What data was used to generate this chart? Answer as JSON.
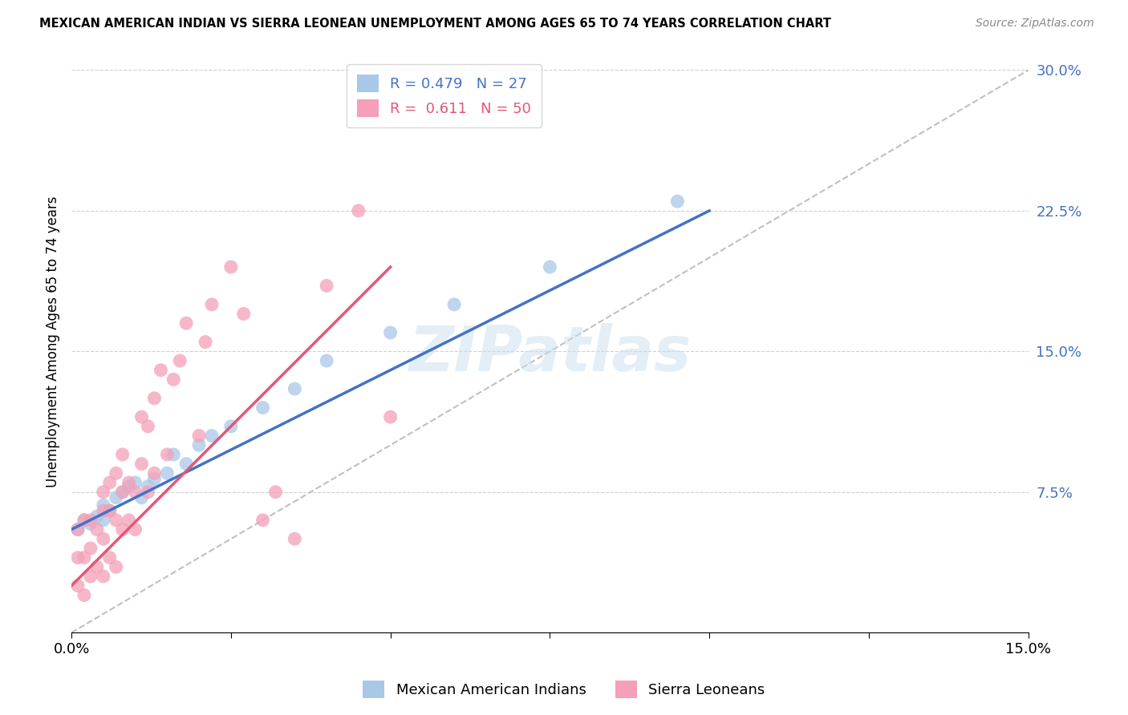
{
  "title": "MEXICAN AMERICAN INDIAN VS SIERRA LEONEAN UNEMPLOYMENT AMONG AGES 65 TO 74 YEARS CORRELATION CHART",
  "source": "Source: ZipAtlas.com",
  "ylabel": "Unemployment Among Ages 65 to 74 years",
  "xlim": [
    0.0,
    0.15
  ],
  "ylim": [
    0.0,
    0.31
  ],
  "yticks": [
    0.075,
    0.15,
    0.225,
    0.3
  ],
  "ytick_labels": [
    "7.5%",
    "15.0%",
    "22.5%",
    "30.0%"
  ],
  "xticks": [
    0.0,
    0.025,
    0.05,
    0.075,
    0.1,
    0.125,
    0.15
  ],
  "xtick_labels": [
    "0.0%",
    "",
    "",
    "",
    "",
    "",
    "15.0%"
  ],
  "blue_color": "#a8c8e8",
  "pink_color": "#f4a0b8",
  "blue_line_color": "#4472c4",
  "pink_line_color": "#e05878",
  "diag_line_color": "#c0c0c0",
  "R_blue": 0.479,
  "N_blue": 27,
  "R_pink": 0.611,
  "N_pink": 50,
  "watermark": "ZIPatlas",
  "blue_scatter_x": [
    0.001,
    0.002,
    0.003,
    0.004,
    0.005,
    0.005,
    0.006,
    0.007,
    0.008,
    0.009,
    0.01,
    0.011,
    0.012,
    0.013,
    0.015,
    0.016,
    0.018,
    0.02,
    0.022,
    0.025,
    0.03,
    0.035,
    0.04,
    0.05,
    0.06,
    0.075,
    0.095
  ],
  "blue_scatter_y": [
    0.055,
    0.06,
    0.058,
    0.062,
    0.06,
    0.068,
    0.065,
    0.072,
    0.075,
    0.078,
    0.08,
    0.072,
    0.078,
    0.082,
    0.085,
    0.095,
    0.09,
    0.1,
    0.105,
    0.11,
    0.12,
    0.13,
    0.145,
    0.16,
    0.175,
    0.195,
    0.23
  ],
  "pink_scatter_x": [
    0.001,
    0.001,
    0.001,
    0.002,
    0.002,
    0.002,
    0.003,
    0.003,
    0.003,
    0.004,
    0.004,
    0.005,
    0.005,
    0.005,
    0.005,
    0.006,
    0.006,
    0.006,
    0.007,
    0.007,
    0.007,
    0.008,
    0.008,
    0.008,
    0.009,
    0.009,
    0.01,
    0.01,
    0.011,
    0.011,
    0.012,
    0.012,
    0.013,
    0.013,
    0.014,
    0.015,
    0.016,
    0.017,
    0.018,
    0.02,
    0.021,
    0.022,
    0.025,
    0.027,
    0.03,
    0.032,
    0.035,
    0.04,
    0.045,
    0.05
  ],
  "pink_scatter_y": [
    0.025,
    0.04,
    0.055,
    0.02,
    0.04,
    0.06,
    0.03,
    0.045,
    0.06,
    0.035,
    0.055,
    0.03,
    0.05,
    0.065,
    0.075,
    0.04,
    0.065,
    0.08,
    0.035,
    0.06,
    0.085,
    0.055,
    0.075,
    0.095,
    0.06,
    0.08,
    0.055,
    0.075,
    0.09,
    0.115,
    0.075,
    0.11,
    0.085,
    0.125,
    0.14,
    0.095,
    0.135,
    0.145,
    0.165,
    0.105,
    0.155,
    0.175,
    0.195,
    0.17,
    0.06,
    0.075,
    0.05,
    0.185,
    0.225,
    0.115
  ],
  "blue_line_x": [
    0.0,
    0.1
  ],
  "blue_line_y": [
    0.055,
    0.225
  ],
  "pink_line_x": [
    0.0,
    0.05
  ],
  "pink_line_y": [
    0.025,
    0.195
  ]
}
